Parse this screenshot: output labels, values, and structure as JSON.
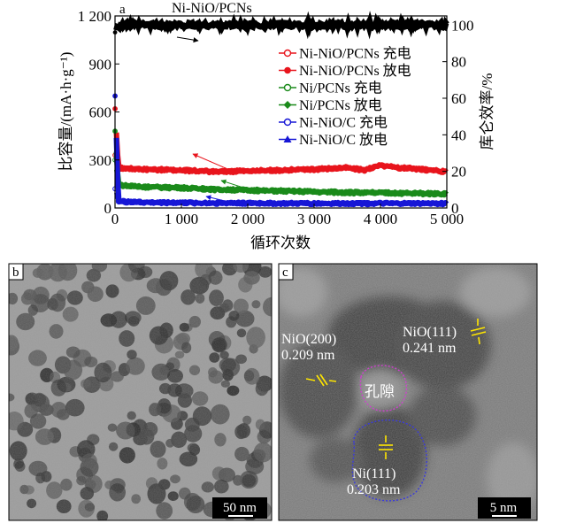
{
  "chart_data": {
    "type": "scatter",
    "panel_label": "a",
    "title": "Ni-NiO/PCNs",
    "xlabel": "循环次数",
    "ylabel_left": "比容量/(mA·h·g⁻¹)",
    "ylabel_right": "库仑效率/%",
    "xlim": [
      0,
      5000
    ],
    "ylim_left": [
      0,
      1200
    ],
    "ylim_right": [
      0,
      105
    ],
    "x_ticks": [
      "0",
      "1 000",
      "2 000",
      "3 000",
      "4 000",
      "5 000"
    ],
    "y_ticks_left": [
      "0",
      "300",
      "600",
      "900",
      "1 200"
    ],
    "y_ticks_right": [
      "0",
      "20",
      "40",
      "60",
      "80",
      "100"
    ],
    "legend_position": "top-right",
    "series": [
      {
        "name": "Ni-NiO/PCNs 充电",
        "color": "#e8141c",
        "marker": "open-circle",
        "x": [
          1,
          50,
          200,
          500,
          1000,
          1500,
          2000,
          2500,
          3000,
          3500,
          3750,
          4000,
          4250,
          4500,
          4750,
          5000
        ],
        "y": [
          330,
          255,
          250,
          245,
          240,
          230,
          235,
          240,
          245,
          255,
          240,
          270,
          255,
          250,
          240,
          230
        ]
      },
      {
        "name": "Ni-NiO/PCNs 放电",
        "color": "#e8141c",
        "marker": "filled-circle",
        "x": [
          1,
          50,
          200,
          500,
          1000,
          1500,
          2000,
          2500,
          3000,
          3500,
          3750,
          4000,
          4250,
          4500,
          4750,
          5000
        ],
        "y": [
          620,
          250,
          245,
          240,
          235,
          225,
          230,
          235,
          240,
          250,
          235,
          265,
          250,
          245,
          235,
          225
        ]
      },
      {
        "name": "Ni/PCNs 充电",
        "color": "#1a8a1a",
        "marker": "open-circle",
        "x": [
          1,
          50,
          200,
          500,
          1000,
          1500,
          2000,
          2500,
          3000,
          3500,
          4000,
          4500,
          5000
        ],
        "y": [
          300,
          150,
          140,
          135,
          130,
          120,
          115,
          110,
          105,
          100,
          98,
          95,
          92
        ]
      },
      {
        "name": "Ni/PCNs 放电",
        "color": "#1a8a1a",
        "marker": "filled-diamond",
        "x": [
          1,
          50,
          200,
          500,
          1000,
          1500,
          2000,
          2500,
          3000,
          3500,
          4000,
          4500,
          5000
        ],
        "y": [
          480,
          145,
          135,
          130,
          125,
          115,
          110,
          105,
          100,
          95,
          93,
          90,
          88
        ]
      },
      {
        "name": "Ni-NiO/C 充电",
        "color": "#1616d6",
        "marker": "open-circle",
        "x": [
          1,
          50,
          200,
          500,
          1000,
          1500,
          2000,
          2500,
          3000,
          3500,
          4000,
          4500,
          5000
        ],
        "y": [
          120,
          45,
          40,
          38,
          35,
          33,
          32,
          30,
          30,
          30,
          30,
          30,
          30
        ]
      },
      {
        "name": "Ni-NiO/C 放电",
        "color": "#1616d6",
        "marker": "filled-triangle",
        "x": [
          1,
          50,
          200,
          500,
          1000,
          1500,
          2000,
          2500,
          3000,
          3500,
          4000,
          4500,
          5000
        ],
        "y": [
          700,
          40,
          36,
          34,
          32,
          30,
          30,
          28,
          28,
          28,
          28,
          28,
          28
        ]
      }
    ],
    "coulombic_efficiency": {
      "axis": "right",
      "color": "#000000",
      "x": [
        1,
        30,
        100,
        500,
        1000,
        2000,
        3000,
        4000,
        5000
      ],
      "y": [
        96,
        99,
        100,
        100,
        100,
        100,
        100,
        100,
        100
      ]
    }
  },
  "images": [
    {
      "label": "b",
      "scale_bar": "50 nm"
    },
    {
      "label": "c",
      "scale_bar": "5 nm",
      "annotations": {
        "niO200": "NiO(200)",
        "niO200_d": "0.209 nm",
        "niO111": "NiO(111)",
        "niO111_d": "0.241 nm",
        "pore": "孔隙",
        "ni111": "Ni(111)",
        "ni111_d": "0.203 nm"
      }
    }
  ]
}
